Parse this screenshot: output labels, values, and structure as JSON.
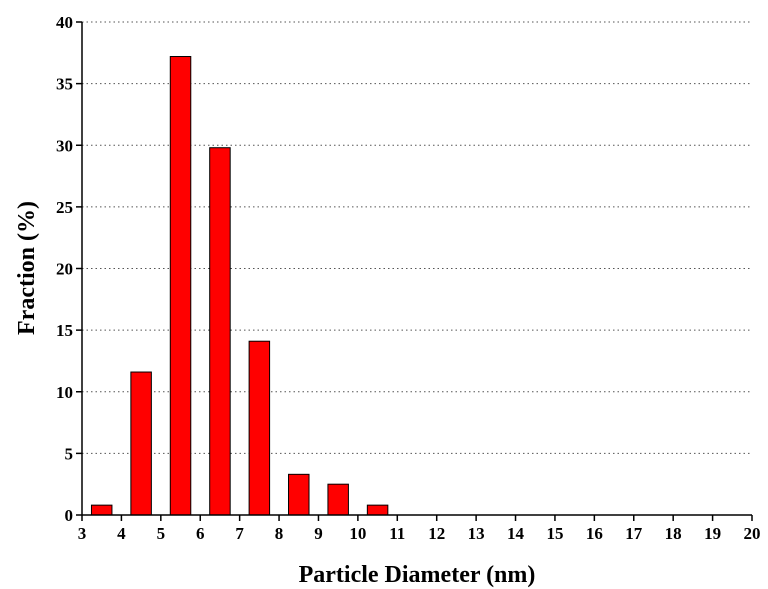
{
  "chart_data": {
    "type": "bar",
    "xlabel": "Particle Diameter (nm)",
    "ylabel": "Fraction (%)",
    "xlim": [
      3,
      20
    ],
    "ylim": [
      0,
      40
    ],
    "x_ticks": [
      "3",
      "4",
      "5",
      "6",
      "7",
      "8",
      "9",
      "10",
      "11",
      "12",
      "13",
      "14",
      "15",
      "16",
      "17",
      "18",
      "19",
      "20"
    ],
    "y_ticks": [
      "0",
      "5",
      "10",
      "15",
      "20",
      "25",
      "30",
      "35",
      "40"
    ],
    "grid": "horizontal dotted",
    "bar_color": "#ff0000",
    "bins": [
      {
        "center": 3.5,
        "value": 0.8
      },
      {
        "center": 4.5,
        "value": 11.6
      },
      {
        "center": 5.5,
        "value": 37.2
      },
      {
        "center": 6.5,
        "value": 29.8
      },
      {
        "center": 7.5,
        "value": 14.1
      },
      {
        "center": 8.5,
        "value": 3.3
      },
      {
        "center": 9.5,
        "value": 2.5
      },
      {
        "center": 10.5,
        "value": 0.8
      }
    ]
  }
}
